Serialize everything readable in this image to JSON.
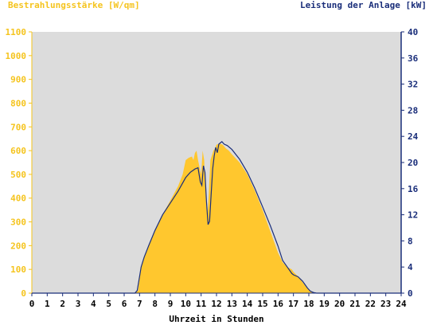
{
  "chart_data": {
    "type": "area",
    "title_left": "Bestrahlungsstärke [W/qm]",
    "title_right": "Leistung der Anlage [kW]",
    "xlabel": "Uhrzeit in Stunden",
    "xlim": [
      0,
      24
    ],
    "x_ticks": [
      "0",
      "1",
      "2",
      "3",
      "4",
      "5",
      "6",
      "7",
      "8",
      "9",
      "10",
      "11",
      "12",
      "13",
      "14",
      "15",
      "16",
      "17",
      "18",
      "19",
      "20",
      "21",
      "22",
      "23",
      "24"
    ],
    "y_left": {
      "lim": [
        0,
        1100
      ],
      "ticks": [
        "0",
        "100",
        "200",
        "300",
        "400",
        "500",
        "600",
        "700",
        "800",
        "900",
        "1000",
        "1100"
      ],
      "color": "#f5c41e"
    },
    "y_right": {
      "lim": [
        0,
        40
      ],
      "ticks": [
        "0",
        "4",
        "8",
        "12",
        "16",
        "20",
        "24",
        "28",
        "32",
        "36",
        "40"
      ],
      "color": "#1a2e7a"
    },
    "colors": {
      "plot_background": "#dcdcdc",
      "irradiance_fill": "#ffc72e",
      "power_line": "#1a2e7a"
    },
    "series": [
      {
        "name": "Bestrahlungsstärke",
        "axis": "left",
        "style": "area",
        "x": [
          0,
          6.7,
          6.9,
          7.0,
          7.1,
          7.3,
          7.6,
          8.0,
          8.5,
          9.0,
          9.5,
          9.8,
          10.0,
          10.2,
          10.4,
          10.5,
          10.6,
          10.7,
          10.8,
          10.9,
          11.0,
          11.1,
          11.2,
          11.3,
          11.4,
          11.5,
          11.6,
          11.7,
          11.8,
          11.9,
          12.0,
          12.2,
          12.4,
          12.6,
          12.8,
          13.0,
          13.5,
          14.0,
          14.5,
          15.0,
          15.5,
          16.0,
          16.3,
          16.6,
          16.9,
          17.0,
          17.3,
          17.6,
          17.9,
          18.1,
          18.3,
          18.5,
          24
        ],
        "values": [
          0,
          0,
          10,
          60,
          110,
          150,
          200,
          265,
          330,
          390,
          450,
          500,
          560,
          570,
          575,
          560,
          590,
          600,
          560,
          530,
          500,
          600,
          560,
          400,
          320,
          420,
          560,
          580,
          600,
          610,
          625,
          630,
          625,
          610,
          600,
          585,
          550,
          500,
          430,
          350,
          260,
          170,
          130,
          110,
          100,
          90,
          70,
          45,
          20,
          8,
          0,
          0,
          0
        ]
      },
      {
        "name": "Leistung der Anlage",
        "axis": "right",
        "style": "line",
        "x": [
          0,
          6.7,
          6.85,
          7.0,
          7.1,
          7.3,
          7.6,
          8.0,
          8.5,
          9.0,
          9.5,
          10.0,
          10.3,
          10.6,
          10.8,
          10.95,
          11.05,
          11.15,
          11.25,
          11.35,
          11.45,
          11.55,
          11.65,
          11.75,
          11.85,
          11.95,
          12.05,
          12.15,
          12.25,
          12.35,
          12.5,
          12.7,
          13.0,
          13.5,
          14.0,
          14.5,
          15.0,
          15.5,
          16.0,
          16.3,
          16.6,
          16.9,
          17.0,
          17.3,
          17.6,
          17.9,
          18.1,
          18.3,
          18.5,
          24
        ],
        "values": [
          0,
          0,
          0.4,
          2.5,
          4.0,
          5.5,
          7.3,
          9.6,
          12.0,
          13.8,
          15.6,
          17.7,
          18.5,
          19.0,
          19.2,
          17.0,
          16.5,
          19.5,
          18.5,
          14.0,
          10.5,
          11.0,
          15.0,
          19.0,
          21.0,
          22.3,
          21.5,
          22.8,
          23.0,
          23.2,
          22.8,
          22.6,
          22.0,
          20.5,
          18.5,
          16.0,
          13.2,
          10.3,
          7.2,
          5.0,
          4.0,
          3.0,
          2.8,
          2.5,
          1.8,
          0.8,
          0.3,
          0.1,
          0,
          0
        ]
      }
    ]
  }
}
